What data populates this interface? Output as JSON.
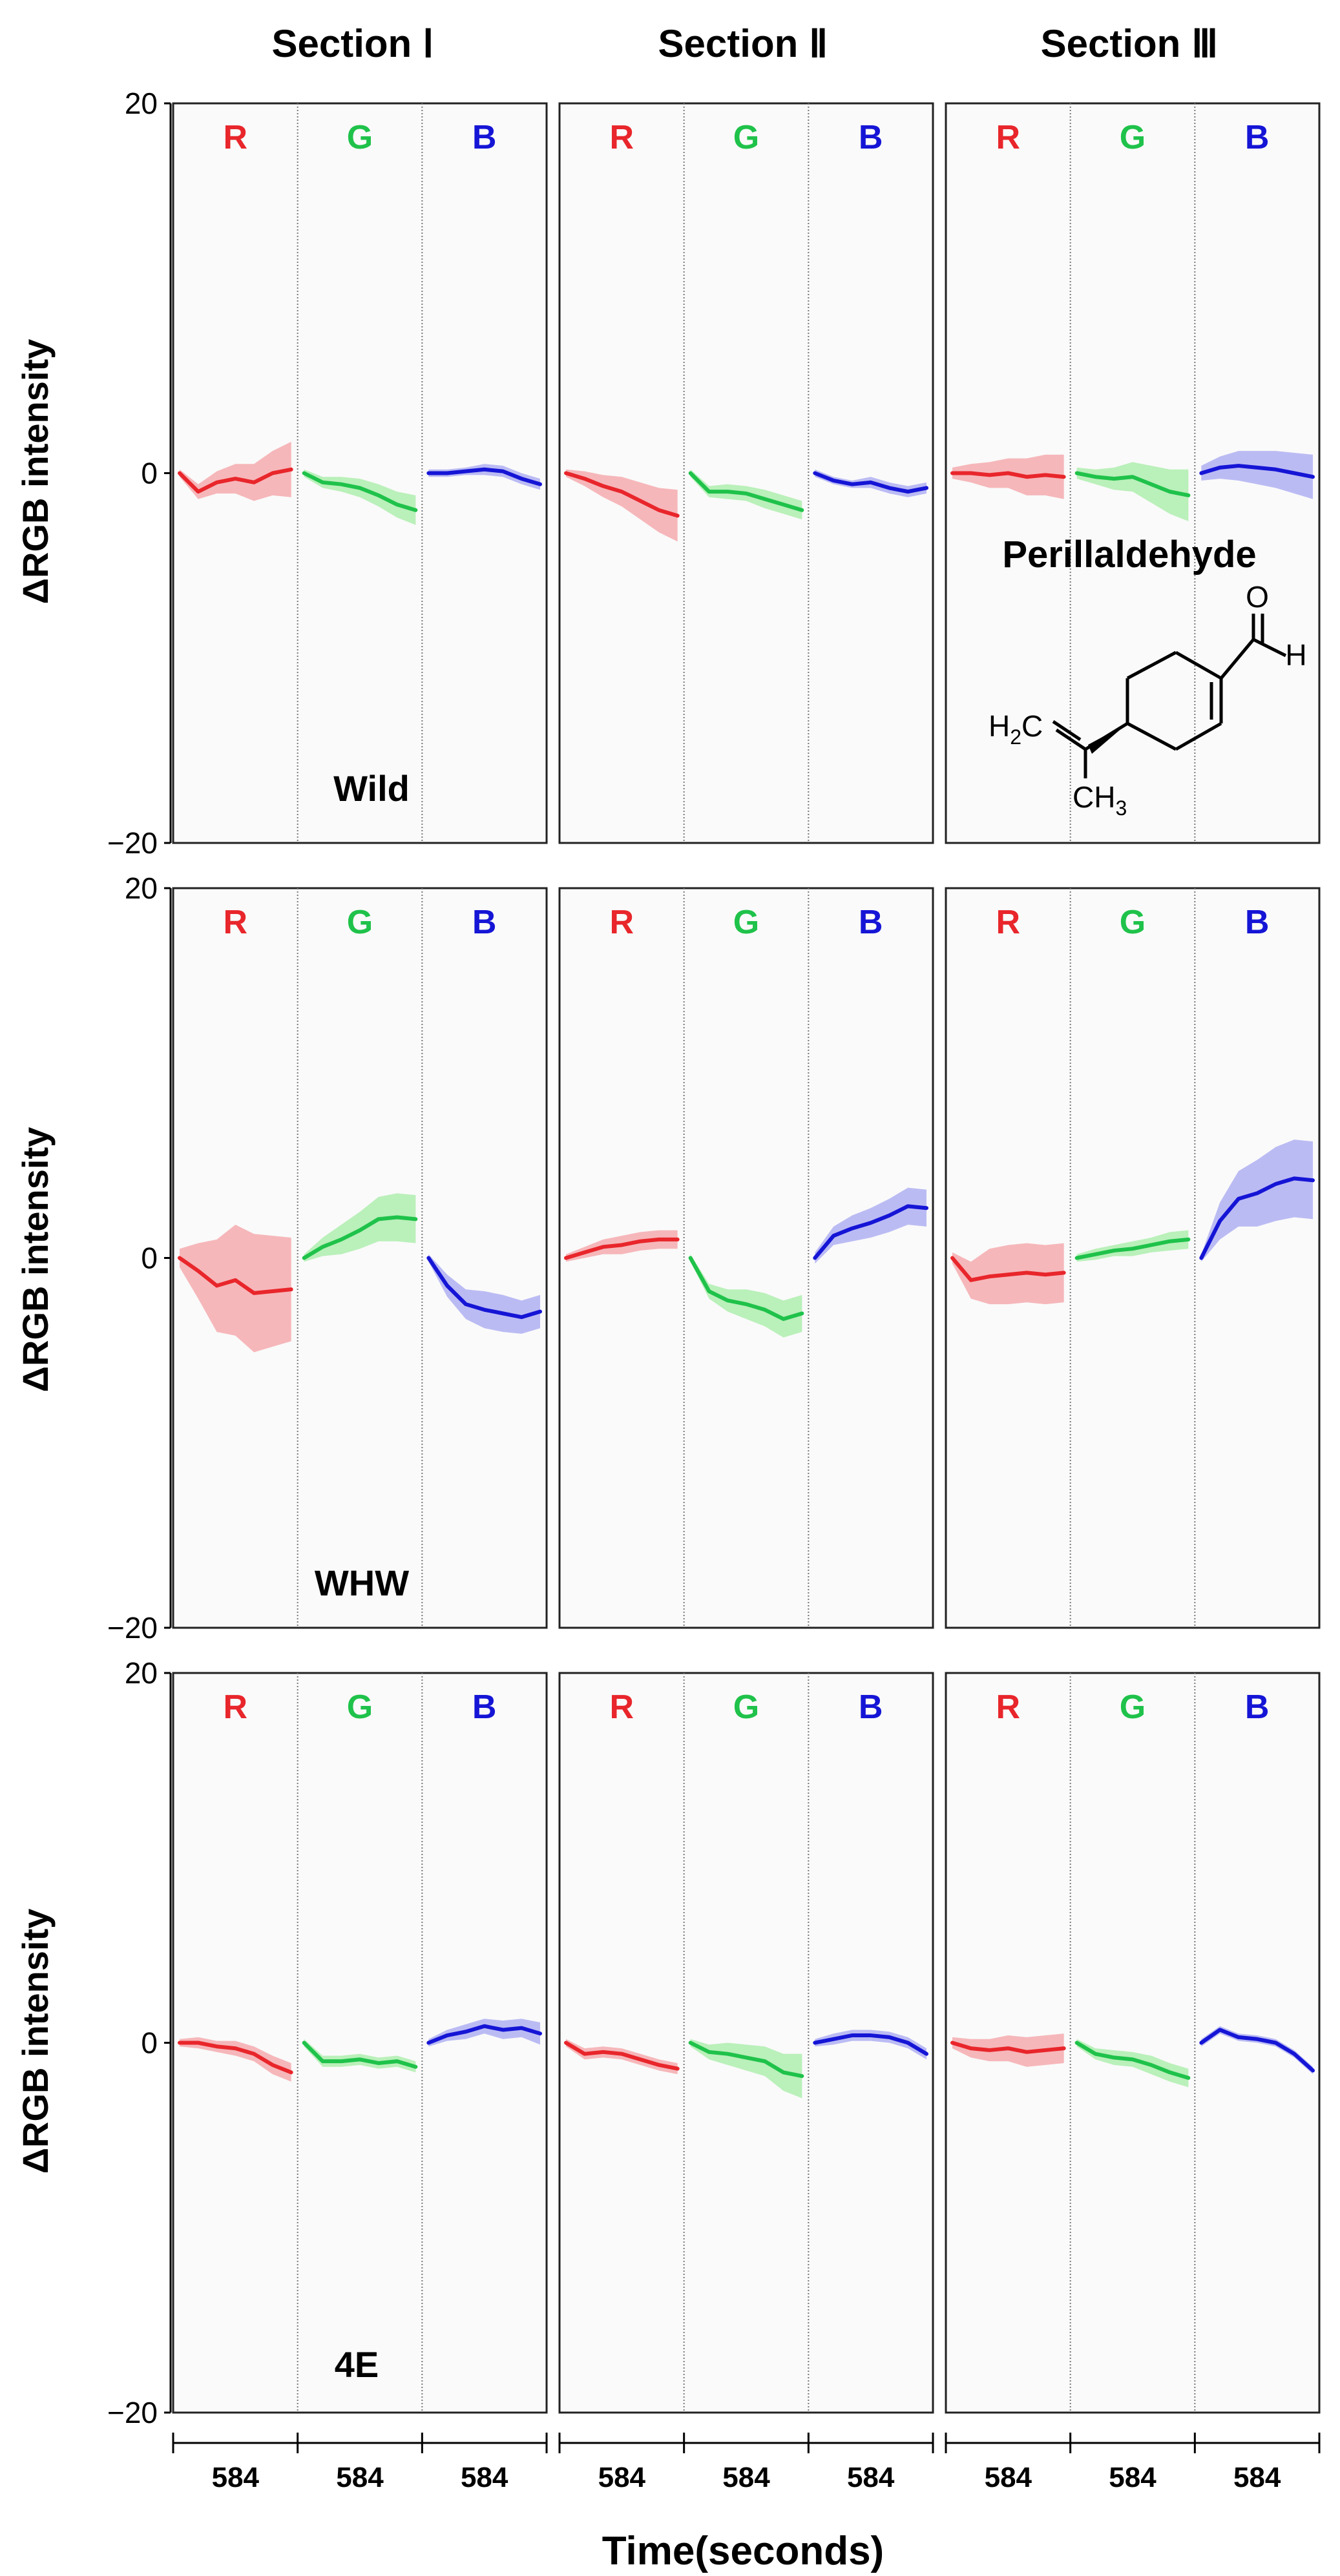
{
  "chart_data": {
    "type": "line",
    "title": "",
    "sections": [
      "Section Ⅰ",
      "Section Ⅱ",
      "Section Ⅲ"
    ],
    "channels": [
      "R",
      "G",
      "B"
    ],
    "channel_colors": {
      "R": "#e8262b",
      "G": "#1fc24a",
      "B": "#1515d6"
    },
    "band_colors": {
      "R": "#f4a0a4",
      "G": "#a4eca4",
      "B": "#a6a6f2"
    },
    "ylabel": "ΔRGB intensity",
    "xlabel": "Time(seconds)",
    "ylim": [
      -20,
      20
    ],
    "yticks": [
      "20",
      "0",
      "−20"
    ],
    "ytick_values": [
      20,
      0,
      -20
    ],
    "xtick_label": "584",
    "x_duration_seconds": 584,
    "rows": [
      {
        "label": "Wild",
        "panels": [
          {
            "R": {
              "mean": [
                0,
                -1,
                -0.5,
                -0.3,
                -0.5,
                0,
                0.2
              ],
              "sd": [
                0.2,
                0.4,
                0.6,
                0.8,
                1.0,
                1.2,
                1.5
              ]
            },
            "G": {
              "mean": [
                0,
                -0.5,
                -0.6,
                -0.8,
                -1.2,
                -1.7,
                -2.0
              ],
              "sd": [
                0.2,
                0.3,
                0.4,
                0.5,
                0.6,
                0.7,
                0.8
              ]
            },
            "B": {
              "mean": [
                0,
                0,
                0.1,
                0.2,
                0.1,
                -0.3,
                -0.6
              ],
              "sd": [
                0.2,
                0.2,
                0.2,
                0.3,
                0.3,
                0.3,
                0.3
              ]
            }
          },
          {
            "R": {
              "mean": [
                0,
                -0.3,
                -0.7,
                -1.0,
                -1.5,
                -2.0,
                -2.3
              ],
              "sd": [
                0.2,
                0.4,
                0.6,
                0.8,
                1.0,
                1.2,
                1.4
              ]
            },
            "G": {
              "mean": [
                0,
                -1.0,
                -1.0,
                -1.1,
                -1.4,
                -1.7,
                -2.0
              ],
              "sd": [
                0.2,
                0.3,
                0.4,
                0.4,
                0.5,
                0.5,
                0.5
              ]
            },
            "B": {
              "mean": [
                0,
                -0.4,
                -0.6,
                -0.5,
                -0.8,
                -1.0,
                -0.8
              ],
              "sd": [
                0.2,
                0.2,
                0.2,
                0.3,
                0.3,
                0.3,
                0.3
              ]
            }
          },
          {
            "R": {
              "mean": [
                0,
                0,
                -0.1,
                0,
                -0.2,
                -0.1,
                -0.2
              ],
              "sd": [
                0.3,
                0.5,
                0.7,
                0.8,
                1.0,
                1.1,
                1.2
              ]
            },
            "G": {
              "mean": [
                0,
                -0.2,
                -0.3,
                -0.2,
                -0.6,
                -1.0,
                -1.2
              ],
              "sd": [
                0.3,
                0.4,
                0.6,
                0.8,
                1.0,
                1.2,
                1.4
              ]
            },
            "B": {
              "mean": [
                0,
                0.3,
                0.4,
                0.3,
                0.2,
                0,
                -0.2
              ],
              "sd": [
                0.4,
                0.6,
                0.8,
                0.9,
                1.0,
                1.1,
                1.2
              ]
            }
          }
        ]
      },
      {
        "label": "WHW",
        "panels": [
          {
            "R": {
              "mean": [
                0,
                -0.7,
                -1.5,
                -1.2,
                -1.9,
                -1.8,
                -1.7
              ],
              "sd": [
                0.5,
                1.5,
                2.5,
                3.0,
                3.2,
                3.0,
                2.8
              ]
            },
            "G": {
              "mean": [
                0,
                0.6,
                1.0,
                1.5,
                2.1,
                2.2,
                2.1
              ],
              "sd": [
                0.2,
                0.5,
                0.8,
                1.0,
                1.2,
                1.3,
                1.3
              ]
            },
            "B": {
              "mean": [
                0,
                -1.5,
                -2.5,
                -2.8,
                -3.0,
                -3.2,
                -2.9
              ],
              "sd": [
                0.2,
                0.6,
                0.8,
                1.0,
                1.0,
                0.9,
                0.9
              ]
            }
          },
          {
            "R": {
              "mean": [
                0,
                0.3,
                0.6,
                0.7,
                0.9,
                1.0,
                1.0
              ],
              "sd": [
                0.2,
                0.3,
                0.4,
                0.5,
                0.5,
                0.5,
                0.5
              ]
            },
            "G": {
              "mean": [
                0,
                -1.8,
                -2.3,
                -2.5,
                -2.8,
                -3.3,
                -3.0
              ],
              "sd": [
                0.2,
                0.4,
                0.6,
                0.8,
                0.9,
                1.0,
                1.0
              ]
            },
            "B": {
              "mean": [
                0,
                1.2,
                1.6,
                1.9,
                2.3,
                2.8,
                2.7
              ],
              "sd": [
                0.3,
                0.5,
                0.7,
                0.8,
                0.9,
                1.0,
                1.0
              ]
            }
          },
          {
            "R": {
              "mean": [
                0,
                -1.2,
                -1.0,
                -0.9,
                -0.8,
                -0.9,
                -0.8
              ],
              "sd": [
                0.3,
                1.0,
                1.5,
                1.6,
                1.6,
                1.6,
                1.6
              ]
            },
            "G": {
              "mean": [
                0,
                0.2,
                0.4,
                0.5,
                0.7,
                0.9,
                1.0
              ],
              "sd": [
                0.2,
                0.3,
                0.3,
                0.4,
                0.4,
                0.5,
                0.5
              ]
            },
            "B": {
              "mean": [
                0,
                2.0,
                3.2,
                3.5,
                4.0,
                4.3,
                4.2
              ],
              "sd": [
                0.2,
                1.0,
                1.5,
                1.8,
                2.0,
                2.1,
                2.1
              ]
            }
          }
        ]
      },
      {
        "label": "4E",
        "panels": [
          {
            "R": {
              "mean": [
                0,
                0,
                -0.2,
                -0.3,
                -0.6,
                -1.2,
                -1.6
              ],
              "sd": [
                0.2,
                0.3,
                0.3,
                0.4,
                0.4,
                0.5,
                0.5
              ]
            },
            "G": {
              "mean": [
                0,
                -1.0,
                -1.0,
                -0.9,
                -1.1,
                -1.0,
                -1.3
              ],
              "sd": [
                0.2,
                0.3,
                0.3,
                0.3,
                0.3,
                0.3,
                0.3
              ]
            },
            "B": {
              "mean": [
                0,
                0.4,
                0.6,
                0.9,
                0.7,
                0.8,
                0.5
              ],
              "sd": [
                0.2,
                0.3,
                0.4,
                0.4,
                0.5,
                0.5,
                0.6
              ]
            }
          },
          {
            "R": {
              "mean": [
                0,
                -0.6,
                -0.5,
                -0.6,
                -0.9,
                -1.2,
                -1.4
              ],
              "sd": [
                0.2,
                0.3,
                0.3,
                0.3,
                0.3,
                0.3,
                0.3
              ]
            },
            "G": {
              "mean": [
                0,
                -0.5,
                -0.6,
                -0.8,
                -1.0,
                -1.6,
                -1.8
              ],
              "sd": [
                0.2,
                0.4,
                0.6,
                0.7,
                0.8,
                1.0,
                1.2
              ]
            },
            "B": {
              "mean": [
                0,
                0.2,
                0.4,
                0.4,
                0.3,
                0.0,
                -0.6
              ],
              "sd": [
                0.2,
                0.3,
                0.3,
                0.3,
                0.3,
                0.3,
                0.3
              ]
            }
          },
          {
            "R": {
              "mean": [
                0,
                -0.3,
                -0.4,
                -0.3,
                -0.5,
                -0.4,
                -0.3
              ],
              "sd": [
                0.3,
                0.5,
                0.6,
                0.7,
                0.8,
                0.8,
                0.8
              ]
            },
            "G": {
              "mean": [
                0,
                -0.6,
                -0.8,
                -0.9,
                -1.2,
                -1.6,
                -1.9
              ],
              "sd": [
                0.2,
                0.3,
                0.4,
                0.4,
                0.5,
                0.5,
                0.5
              ]
            },
            "B": {
              "mean": [
                0,
                0.7,
                0.3,
                0.2,
                0.0,
                -0.6,
                -1.5
              ],
              "sd": [
                0.2,
                0.2,
                0.2,
                0.2,
                0.2,
                0.2,
                0.2
              ]
            }
          }
        ]
      }
    ],
    "annotation": {
      "compound": "Perillaldehyde",
      "atoms": {
        "O": "O",
        "H": "H",
        "H2C": "H",
        "H2C_sub": "2",
        "H2C_end": "C",
        "CH3": "CH",
        "CH3_sub": "3"
      }
    }
  }
}
